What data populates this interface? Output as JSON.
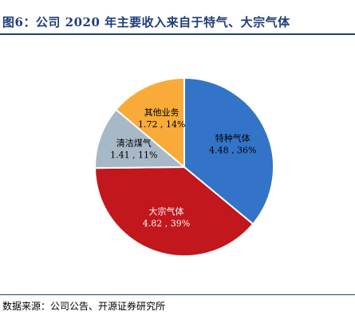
{
  "figure": {
    "title": "图6：公司 2020 年主要收入来自于特气、大宗气体",
    "source": "数据来源：公司公告、开源证券研究所"
  },
  "chart_data": {
    "type": "pie",
    "title": "",
    "slices": [
      {
        "label": "特种气体",
        "value": 4.48,
        "percent": "36%",
        "color": "#3374c8",
        "text_color": "#000000"
      },
      {
        "label": "大宗气体",
        "value": 4.82,
        "percent": "39%",
        "color": "#c2171c",
        "text_color": "#ffffff"
      },
      {
        "label": "清洁煤气",
        "value": 1.41,
        "percent": "11%",
        "color": "#a7b8c6",
        "text_color": "#000000"
      },
      {
        "label": "其他业务",
        "value": 1.72,
        "percent": "14%",
        "color": "#f8ab38",
        "text_color": "#000000"
      }
    ],
    "label_format": "{value} , {percent}",
    "start": "12 o'clock",
    "direction": "clockwise",
    "legend": "none"
  }
}
